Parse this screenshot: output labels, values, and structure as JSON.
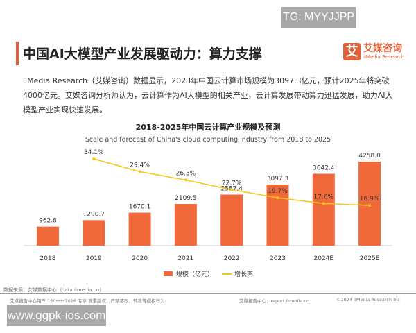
{
  "watermark_top": "TG: MYYJJPP",
  "watermark_bottom": "www.ggpk-ios.com",
  "header": {
    "title": "中国AI大模型产业发展驱动力：算力支撑",
    "logo_cn": "艾媒咨询",
    "logo_en": "iiMedia Research",
    "logo_mark": "艾"
  },
  "paragraph": "iiMedia Research（艾媒咨询）数据显示，2023年中国云计算市场规模为3097.3亿元，预计2025年将突破4000亿元。艾媒咨询分析师认为，云计算作为AI大模型的相关产业，云计算发展带动算力迅猛发展，助力AI大模型产业实现快速发展。",
  "chart_data": {
    "type": "bar+line",
    "title": "2018-2025年中国云计算产业规模及预测",
    "subtitle": "Scale and forecast of China's cloud computing industry from 2018 to 2025",
    "categories": [
      "2018",
      "2019",
      "2020",
      "2021",
      "2022",
      "2023",
      "2024E",
      "2025E"
    ],
    "series": [
      {
        "name": "规模（亿元）",
        "type": "bar",
        "color": "#f0693a",
        "values": [
          962.8,
          1290.7,
          1670.1,
          2109.5,
          2587.4,
          3097.3,
          3642.4,
          4258.0
        ],
        "labels": [
          "962.8",
          "1290.7",
          "1670.1",
          "2109.5",
          "2587.4",
          "3097.3",
          "3642.4",
          "4258.0"
        ]
      },
      {
        "name": "增长率",
        "type": "line",
        "color": "#f5c518",
        "values": [
          null,
          34.1,
          29.4,
          26.3,
          22.7,
          19.7,
          17.6,
          16.9
        ],
        "labels": [
          null,
          "34.1%",
          "29.4%",
          "26.3%",
          "22.7%",
          "19.7%",
          "17.6%",
          "16.9%"
        ]
      }
    ],
    "legend": "bottom",
    "grid": false
  },
  "footer": {
    "source": "数据来源：艾媒数据中心（data.iimedia.cn）",
    "notice": "艾媒报告中心用户 150****7016 专享 尊重版权，严禁篡改、转售等侵权行为",
    "report_center": "艾媒报告中心：report.iimedia.cn",
    "copyright": "©2024 iiMedia Research Inc"
  }
}
